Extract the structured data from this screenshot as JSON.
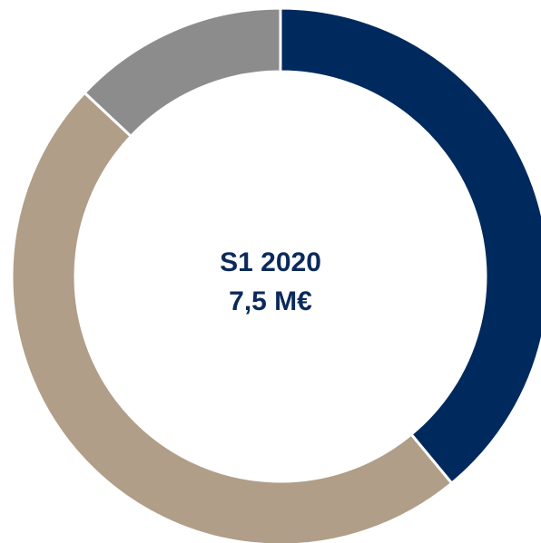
{
  "chart_data": {
    "type": "pie",
    "variant": "donut",
    "center_text": [
      "S1 2020",
      "7,5 M€"
    ],
    "slices": [
      {
        "value": 39,
        "color": "#002a5e"
      },
      {
        "value": 48,
        "color": "#b09e88"
      },
      {
        "value": 13,
        "color": "#8c8c8c"
      }
    ],
    "start_angle_deg": 0,
    "direction": "clockwise",
    "separator_color": "#ffffff"
  }
}
